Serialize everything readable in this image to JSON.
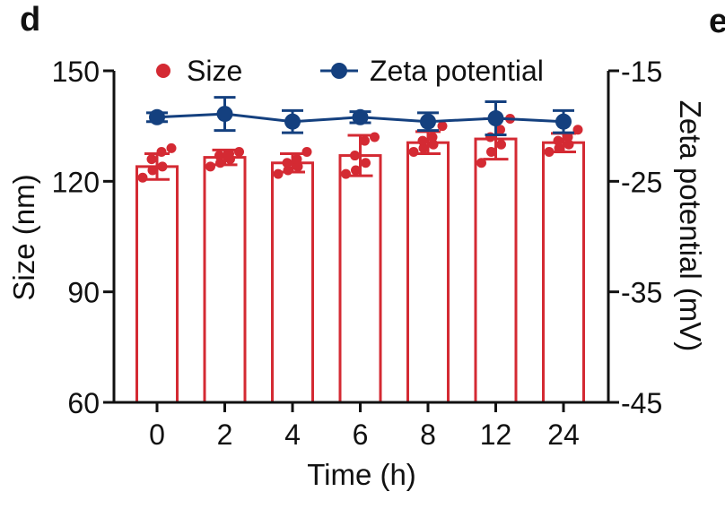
{
  "panel_label": "d",
  "next_panel_label": "e",
  "chart_data": {
    "type": "bar",
    "xlabel": "Time (h)",
    "ylabel": "Size (nm)",
    "y2label": "Zeta potential (mV)",
    "categories": [
      "0",
      "2",
      "4",
      "6",
      "8",
      "12",
      "24"
    ],
    "ylim": [
      60,
      150
    ],
    "yticks": [
      60,
      90,
      120,
      150
    ],
    "y2lim": [
      -45,
      -15
    ],
    "y2ticks": [
      -45,
      -35,
      -25,
      -15
    ],
    "legend_position": "top",
    "grid": false,
    "series": [
      {
        "name": "Size",
        "type": "bar",
        "axis": "left",
        "color": "#d42a33",
        "values": [
          124,
          126.5,
          125,
          127,
          130.5,
          131.5,
          130.5
        ],
        "errors": [
          3.5,
          2,
          2.5,
          5.5,
          3,
          5.5,
          2.5
        ],
        "points": [
          [
            121,
            123,
            124,
            126,
            128,
            129
          ],
          [
            124,
            125,
            126,
            127,
            127.5,
            128
          ],
          [
            122,
            123,
            124,
            125,
            126,
            128
          ],
          [
            122,
            123,
            125,
            127,
            131,
            132
          ],
          [
            128,
            129,
            130,
            131,
            132,
            135
          ],
          [
            125,
            128,
            130,
            132,
            134,
            137
          ],
          [
            128,
            129,
            130,
            131,
            132,
            134
          ]
        ]
      },
      {
        "name": "Zeta potential",
        "type": "line",
        "axis": "right",
        "color": "#14407f",
        "values": [
          -19.2,
          -18.9,
          -19.6,
          -19.2,
          -19.6,
          -19.3,
          -19.6
        ],
        "errors": [
          0.4,
          1.5,
          1.0,
          0.5,
          0.8,
          1.5,
          1.0
        ]
      }
    ]
  }
}
